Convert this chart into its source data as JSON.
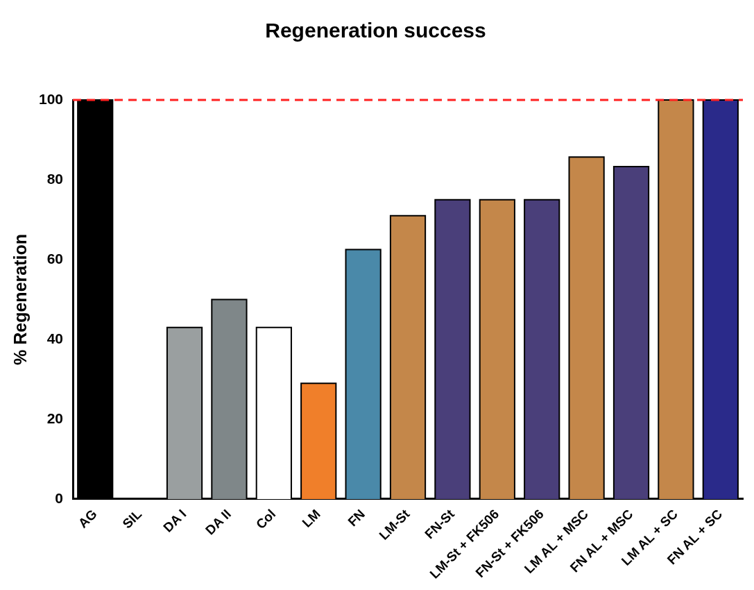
{
  "chart_data": {
    "type": "bar",
    "title": "Regeneration success",
    "ylabel": "% Regeneration",
    "categories": [
      "AG",
      "SIL",
      "DA I",
      "DA II",
      "Col",
      "LM",
      "FN",
      "LM-St",
      "FN-St",
      "LM-St + FK506",
      "FN-St + FK506",
      "LM AL + MSC",
      "FN AL + MSC",
      "LM AL + SC",
      "FN AL + SC"
    ],
    "values": [
      100,
      0,
      43,
      50,
      43,
      29,
      62.5,
      71,
      75,
      75,
      75,
      85.7,
      83.3,
      100,
      100
    ],
    "colors": [
      "#000000",
      "#ffffff",
      "#9a9fa0",
      "#7f8789",
      "#ffffff",
      "#f07f2a",
      "#4a89a9",
      "#c4874a",
      "#4a3f7a",
      "#c4874a",
      "#4a3f7a",
      "#c4874a",
      "#4a3f7a",
      "#c4874a",
      "#2a2a8a"
    ],
    "ylim": [
      0,
      100
    ],
    "yticks": [
      0,
      20,
      40,
      60,
      80,
      100
    ],
    "grid": false,
    "legend": false,
    "ref_lines": [
      {
        "axis": "y",
        "value": 100,
        "label": null,
        "color": "#ff2020",
        "line_style": "dashed"
      }
    ]
  }
}
